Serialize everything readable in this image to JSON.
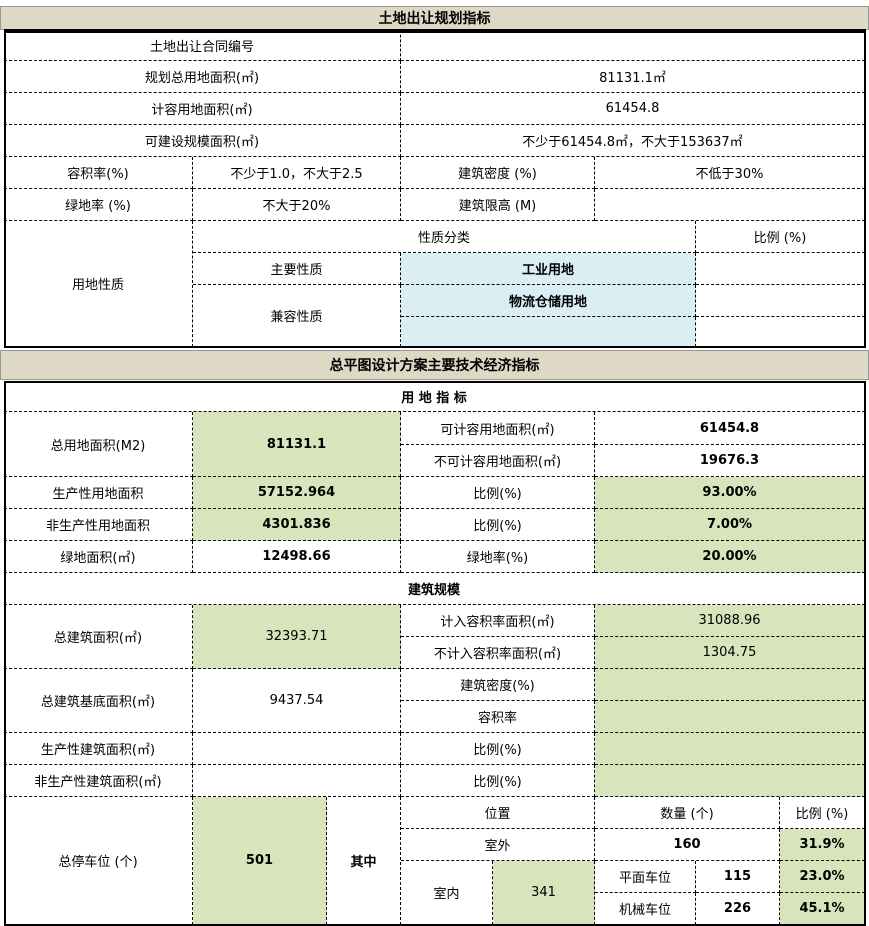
{
  "colors": {
    "header_bg": "#ddd9c4",
    "green_fill": "#d8e4bc",
    "blue_fill": "#daeef3"
  },
  "land": {
    "title": "土地出让规划指标",
    "contract_no": {
      "label": "土地出让合同编号",
      "value": ""
    },
    "total_area": {
      "label": "规划总用地面积(㎡)",
      "value": "81131.1㎡"
    },
    "far_area": {
      "label": "计容用地面积(㎡)",
      "value": "61454.8"
    },
    "build_scale": {
      "label": "可建设规模面积(㎡)",
      "value": "不少于61454.8㎡，不大于153637㎡"
    },
    "far": {
      "label": "容积率(%)",
      "value": "不少于1.0，不大于2.5"
    },
    "density": {
      "label": "建筑密度 (%)",
      "value": "不低于30%"
    },
    "green": {
      "label": "绿地率 (%)",
      "value": "不大于20%"
    },
    "height": {
      "label": "建筑限高 (M)",
      "value": ""
    },
    "use": {
      "label": "用地性质",
      "category_header": "性质分类",
      "ratio_header": "比例 (%)",
      "main_label": "主要性质",
      "main_value": "工业用地",
      "compat_label": "兼容性质",
      "compat_value": "物流仓储用地"
    }
  },
  "plan": {
    "title": "总平图设计方案主要技术经济指标",
    "land_section": "用 地 指 标",
    "total_land": {
      "label": "总用地面积(M2)",
      "value": "81131.1"
    },
    "far_land": {
      "label": "可计容用地面积(㎡)",
      "value": "61454.8"
    },
    "nonfar_land": {
      "label": "不可计容用地面积(㎡)",
      "value": "19676.3"
    },
    "prod_land": {
      "label": "生产性用地面积",
      "value": "57152.964",
      "ratio_label": "比例(%)",
      "ratio": "93.00%"
    },
    "nonprod_land": {
      "label": "非生产性用地面积",
      "value": "4301.836",
      "ratio_label": "比例(%)",
      "ratio": "7.00%"
    },
    "green_land": {
      "label": "绿地面积(㎡)",
      "value": "12498.66",
      "ratio_label": "绿地率(%)",
      "ratio": "20.00%"
    },
    "build_section": "建筑规模",
    "total_build": {
      "label": "总建筑面积(㎡)",
      "value": "32393.71"
    },
    "far_build": {
      "label": "计入容积率面积(㎡)",
      "value": "31088.96"
    },
    "nonfar_build": {
      "label": "不计入容积率面积(㎡)",
      "value": "1304.75"
    },
    "footprint": {
      "label": "总建筑基底面积(㎡)",
      "value": "9437.54",
      "density_label": "建筑密度(%)",
      "far_label": "容积率"
    },
    "prod_build": {
      "label": "生产性建筑面积(㎡)",
      "ratio_label": "比例(%)"
    },
    "nonprod_build": {
      "label": "非生产性建筑面积(㎡)",
      "ratio_label": "比例(%)"
    },
    "parking": {
      "label": "总停车位 (个)",
      "value": "501",
      "of_which": "其中",
      "pos_header": "位置",
      "qty_header": "数量 (个)",
      "ratio_header": "比例 (%)",
      "outdoor": {
        "label": "室外",
        "qty": "160",
        "ratio": "31.9%"
      },
      "indoor": {
        "label": "室内",
        "qty": "341"
      },
      "surface": {
        "label": "平面车位",
        "qty": "115",
        "ratio": "23.0%"
      },
      "mechanical": {
        "label": "机械车位",
        "qty": "226",
        "ratio": "45.1%"
      }
    }
  }
}
